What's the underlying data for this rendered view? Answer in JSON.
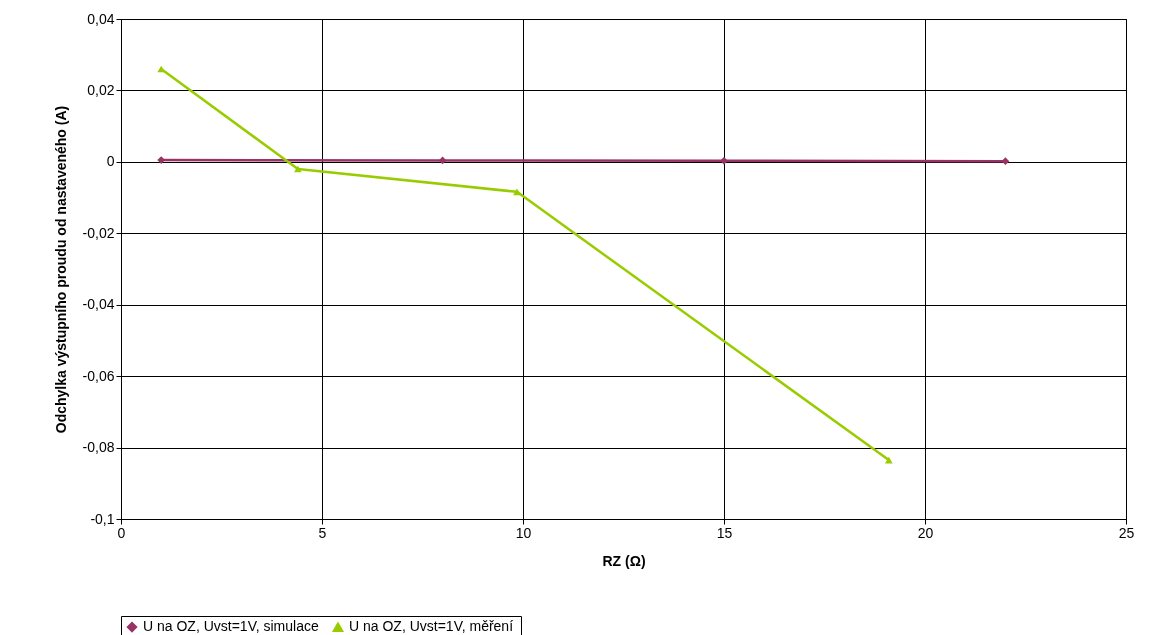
{
  "chart_data": {
    "type": "line",
    "xlabel": "RZ (Ω)",
    "ylabel": "Odchylka výstupního proudu od nastaveného (A)",
    "xlim": [
      0,
      25
    ],
    "xticks": [
      0,
      5,
      10,
      15,
      20,
      25
    ],
    "ylim": [
      -0.1,
      0.04
    ],
    "yticks": [
      {
        "value": -0.1,
        "label": "-0,1"
      },
      {
        "value": -0.08,
        "label": "-0,08"
      },
      {
        "value": -0.06,
        "label": "-0,06"
      },
      {
        "value": -0.04,
        "label": "-0,04"
      },
      {
        "value": -0.02,
        "label": "-0,02"
      },
      0,
      {
        "value": 0.02,
        "label": "0,02"
      },
      {
        "value": 0.04,
        "label": "0,04"
      }
    ],
    "grid": true,
    "legend": "bottom",
    "series": [
      {
        "name": "U na OZ, Uvst=1V, simulace",
        "color": "#993366",
        "marker": "diamond",
        "x": [
          1,
          8,
          15,
          22
        ],
        "values": [
          0.0005,
          0.0004,
          0.0003,
          0.0002
        ]
      },
      {
        "name": "U na OZ,  Uvst=1V, měření",
        "color": "#99cc00",
        "marker": "triangle",
        "x": [
          1,
          4.4,
          9.85,
          19.1
        ],
        "values": [
          0.026,
          -0.002,
          -0.0084,
          -0.0835
        ]
      }
    ]
  }
}
